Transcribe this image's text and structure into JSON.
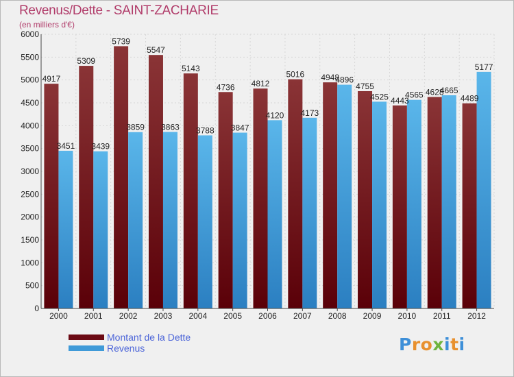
{
  "title": "Revenus/Dette - SAINT-ZACHARIE",
  "subtitle": "(en milliers d'€)",
  "colors": {
    "dette": "#6b0a14",
    "revenus": "#3f9ad8",
    "title": "#b13c6a",
    "legend_text": "#4a63d8"
  },
  "chart_data": {
    "type": "bar",
    "title": "Revenus/Dette - SAINT-ZACHARIE",
    "subtitle": "(en milliers d'€)",
    "categories": [
      "2000",
      "2001",
      "2002",
      "2003",
      "2004",
      "2005",
      "2006",
      "2007",
      "2008",
      "2009",
      "2010",
      "2011",
      "2012"
    ],
    "series": [
      {
        "name": "Montant de la Dette",
        "values": [
          4917,
          5309,
          5739,
          5547,
          5143,
          4736,
          4812,
          5016,
          4948,
          4755,
          4443,
          4628,
          4489
        ]
      },
      {
        "name": "Revenus",
        "values": [
          3451,
          3439,
          3859,
          3863,
          3788,
          3847,
          4120,
          4173,
          4896,
          4525,
          4565,
          4665,
          5177
        ]
      }
    ],
    "yticks": [
      0,
      500,
      1000,
      1500,
      2000,
      2500,
      3000,
      3500,
      4000,
      4500,
      5000,
      5500,
      6000
    ],
    "ylim": [
      0,
      6000
    ],
    "grid": "horizontal",
    "legend": "bottom-left"
  },
  "legend": {
    "items": [
      {
        "label": "Montant de la Dette",
        "color": "#6b0a14"
      },
      {
        "label": "Revenus",
        "color": "#3f9ad8"
      }
    ]
  },
  "logo": {
    "text": "Proxiti",
    "letters": [
      {
        "ch": "P",
        "color": "#3d8fd8"
      },
      {
        "ch": "r",
        "color": "#e8902e"
      },
      {
        "ch": "o",
        "color": "#e8902e"
      },
      {
        "ch": "x",
        "color": "#6fb43f"
      },
      {
        "ch": "i",
        "color": "#3d8fd8"
      },
      {
        "ch": "t",
        "color": "#e8902e"
      },
      {
        "ch": "i",
        "color": "#3d8fd8"
      }
    ]
  }
}
